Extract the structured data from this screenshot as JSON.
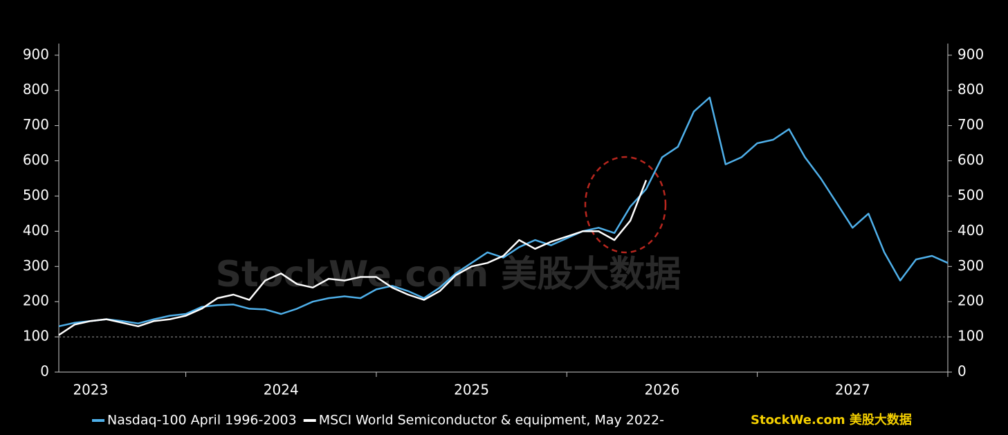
{
  "chart_data": {
    "type": "line",
    "watermark": "StockWe.com 美股大数据",
    "brand": "StockWe.com 美股大数据",
    "xlim": [
      0,
      56
    ],
    "xticks": [
      {
        "value": 2,
        "label": "2023"
      },
      {
        "value": 14,
        "label": "2024"
      },
      {
        "value": 26,
        "label": "2025"
      },
      {
        "value": 38,
        "label": "2026"
      },
      {
        "value": 50,
        "label": "2027"
      }
    ],
    "xtick_marks": [
      8,
      20,
      32,
      44,
      56
    ],
    "ylim": [
      0,
      933
    ],
    "yticks": [
      0,
      100,
      200,
      300,
      400,
      500,
      600,
      700,
      800,
      900
    ],
    "y2lim": [
      0,
      933
    ],
    "y2ticks": [
      0,
      100,
      200,
      300,
      400,
      500,
      600,
      700,
      800,
      900
    ],
    "reference_line": 100,
    "series": [
      {
        "name": "Nasdaq-100 April 1996-2003",
        "color": "#4fb0ea",
        "x": [
          0,
          1,
          2,
          3,
          4,
          5,
          6,
          7,
          8,
          9,
          10,
          11,
          12,
          13,
          14,
          15,
          16,
          17,
          18,
          19,
          20,
          21,
          22,
          23,
          24,
          25,
          26,
          27,
          28,
          29,
          30,
          31,
          32,
          33,
          34,
          35,
          36,
          37,
          38,
          39,
          40,
          41,
          42,
          43,
          44,
          45,
          46,
          47,
          48,
          49,
          50,
          51,
          52,
          53,
          54,
          55,
          56
        ],
        "values": [
          130,
          140,
          145,
          150,
          145,
          138,
          150,
          160,
          165,
          185,
          190,
          192,
          180,
          178,
          165,
          180,
          200,
          210,
          215,
          210,
          235,
          245,
          230,
          210,
          240,
          280,
          310,
          340,
          325,
          355,
          375,
          360,
          380,
          400,
          410,
          395,
          470,
          520,
          610,
          640,
          740,
          780,
          590,
          610,
          650,
          660,
          690,
          610,
          550,
          480,
          410,
          450,
          340,
          260,
          320,
          330,
          310
        ]
      },
      {
        "name": "MSCI World Semiconductor & equipment, May 2022-",
        "color": "#ffffff",
        "x": [
          0,
          1,
          2,
          3,
          4,
          5,
          6,
          7,
          8,
          9,
          10,
          11,
          12,
          13,
          14,
          15,
          16,
          17,
          18,
          19,
          20,
          21,
          22,
          23,
          24,
          25,
          26,
          27,
          28,
          29,
          30,
          31,
          32,
          33,
          34,
          35,
          36,
          37
        ],
        "values": [
          105,
          135,
          145,
          150,
          140,
          130,
          145,
          150,
          160,
          180,
          210,
          220,
          205,
          260,
          280,
          250,
          240,
          265,
          260,
          270,
          270,
          240,
          220,
          205,
          230,
          275,
          300,
          310,
          330,
          375,
          350,
          370,
          385,
          400,
          400,
          375,
          430,
          545
        ]
      }
    ]
  }
}
